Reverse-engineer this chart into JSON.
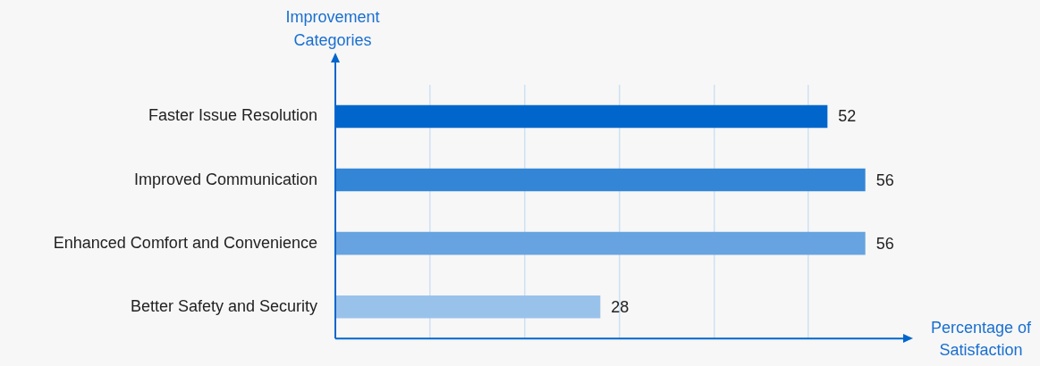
{
  "chart_data": {
    "type": "bar",
    "orientation": "horizontal",
    "categories": [
      "Faster Issue Resolution",
      "Improved Communication",
      "Enhanced Comfort and Convenience",
      "Better Safety and Security"
    ],
    "values": [
      52,
      56,
      56,
      28
    ],
    "colors": [
      "#0066cc",
      "#3385d6",
      "#66a3e0",
      "#99c2eb"
    ],
    "xlabel": "Percentage of Satisfaction",
    "ylabel": "Improvement Categories",
    "xlim": [
      0,
      60
    ],
    "xticks": [
      {
        "value": 10,
        "label": null
      },
      {
        "value": 20,
        "label": null
      },
      {
        "value": 30,
        "label": null
      },
      {
        "value": 40,
        "label": null
      },
      {
        "value": 50,
        "label": null
      }
    ],
    "tick_labels": "y",
    "grid": "x",
    "data_labels": true,
    "legend": false
  }
}
